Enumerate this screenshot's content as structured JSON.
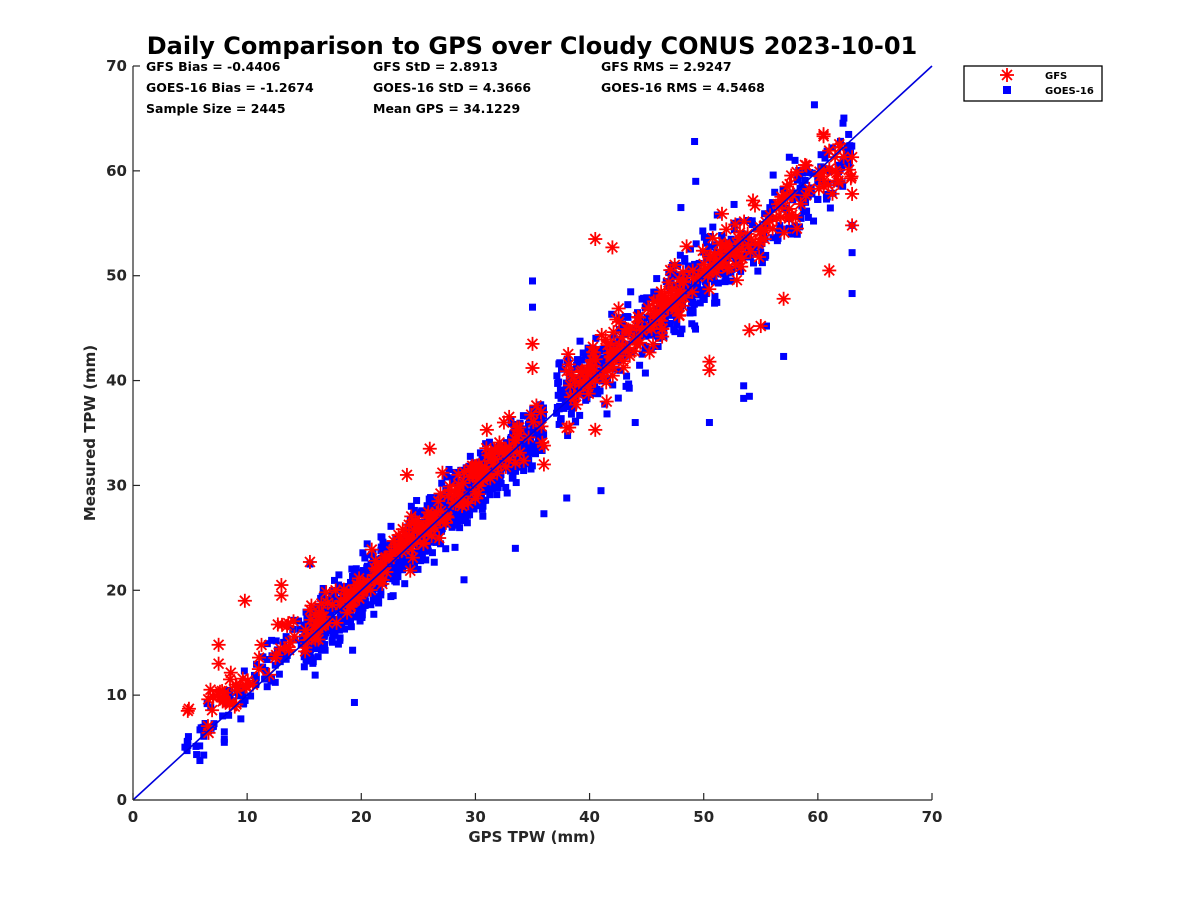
{
  "chart_data": {
    "type": "scatter",
    "title": "Daily Comparison to GPS over Cloudy CONUS 2023-10-01",
    "xlabel": "GPS TPW (mm)",
    "ylabel": "Measured TPW (mm)",
    "xlim": [
      0,
      70
    ],
    "ylim": [
      0,
      70
    ],
    "xticks": [
      "0",
      "10",
      "20",
      "30",
      "40",
      "50",
      "60",
      "70"
    ],
    "yticks": [
      "0",
      "10",
      "20",
      "30",
      "40",
      "50",
      "60",
      "70"
    ],
    "reference_line": {
      "from": [
        0,
        0
      ],
      "to": [
        70,
        70
      ],
      "color": "#0000dd"
    },
    "stats": [
      [
        "GFS Bias = -0.4406",
        "GFS StD = 2.8913",
        "GFS RMS = 2.9247"
      ],
      [
        "GOES-16 Bias = -1.2674",
        "GOES-16 StD = 4.3666",
        "GOES-16 RMS = 4.5468"
      ],
      [
        "Sample Size = 2445",
        "Mean GPS = 34.1229",
        ""
      ]
    ],
    "legend": {
      "position": "outside-top-right",
      "entries": [
        {
          "label": "GFS",
          "marker": "asterisk",
          "color": "#ff0000"
        },
        {
          "label": "GOES-16",
          "marker": "square",
          "color": "#0000ff"
        }
      ]
    },
    "sample_size": 2445,
    "series": [
      {
        "name": "GOES-16",
        "marker": "square",
        "color": "#0000ff",
        "clusters": [
          {
            "x_range": [
              4.5,
              16
            ],
            "slope": 1.0,
            "offset": 0.5,
            "spread": 2.6,
            "count": 90
          },
          {
            "x_range": [
              15,
              36
            ],
            "slope": 1.0,
            "offset": 0.0,
            "spread": 2.8,
            "count": 1100
          },
          {
            "x_range": [
              37,
              52
            ],
            "slope": 0.95,
            "offset": 2.5,
            "spread": 3.6,
            "count": 420
          },
          {
            "x_range": [
              52,
              63
            ],
            "slope": 0.9,
            "offset": 5.0,
            "spread": 3.2,
            "count": 160
          }
        ],
        "points": [
          [
            4.8,
            5.2
          ],
          [
            4.8,
            5.6
          ],
          [
            7,
            7
          ],
          [
            8,
            5.5
          ],
          [
            8,
            6.5
          ],
          [
            8,
            5.8
          ],
          [
            19.4,
            9.3
          ],
          [
            15.5,
            22.5
          ],
          [
            29,
            21
          ],
          [
            33.5,
            24
          ],
          [
            35,
            47
          ],
          [
            35,
            49.5
          ],
          [
            41,
            29.5
          ],
          [
            44,
            36
          ],
          [
            50.5,
            36
          ],
          [
            53.5,
            38.3
          ],
          [
            54,
            38.5
          ],
          [
            53.5,
            39.5
          ],
          [
            57,
            42.3
          ],
          [
            55.5,
            45.2
          ],
          [
            59.7,
            66.3
          ],
          [
            49.2,
            62.8
          ],
          [
            49.3,
            59
          ],
          [
            63,
            48.3
          ],
          [
            63,
            52.2
          ],
          [
            63,
            54.8
          ],
          [
            57.5,
            61.3
          ],
          [
            58,
            61
          ],
          [
            48,
            56.5
          ],
          [
            38,
            28.8
          ],
          [
            36,
            27.3
          ]
        ]
      },
      {
        "name": "GFS",
        "marker": "asterisk",
        "color": "#ff0000",
        "clusters": [
          {
            "x_range": [
              6.5,
              16
            ],
            "slope": 1.0,
            "offset": 2.0,
            "spread": 2.2,
            "count": 40
          },
          {
            "x_range": [
              15,
              36
            ],
            "slope": 1.0,
            "offset": 0.5,
            "spread": 2.2,
            "count": 220
          },
          {
            "x_range": [
              38,
              52
            ],
            "slope": 1.0,
            "offset": 0.8,
            "spread": 3.0,
            "count": 150
          },
          {
            "x_range": [
              52,
              63
            ],
            "slope": 0.92,
            "offset": 4.0,
            "spread": 2.8,
            "count": 80
          }
        ],
        "points": [
          [
            4.8,
            8.5
          ],
          [
            4.9,
            8.7
          ],
          [
            7,
            9.8
          ],
          [
            7.5,
            10
          ],
          [
            8,
            9.5
          ],
          [
            8.5,
            11.5
          ],
          [
            9,
            11
          ],
          [
            7.5,
            13
          ],
          [
            7.5,
            14.8
          ],
          [
            9.8,
            19
          ],
          [
            10.5,
            11
          ],
          [
            13,
            19.5
          ],
          [
            13,
            20.5
          ],
          [
            15.5,
            22.7
          ],
          [
            35,
            43.5
          ],
          [
            35,
            41.2
          ],
          [
            38,
            35.5
          ],
          [
            40.5,
            35.3
          ],
          [
            40.5,
            53.5
          ],
          [
            41.5,
            38
          ],
          [
            42,
            52.7
          ],
          [
            60.5,
            63.5
          ],
          [
            60.5,
            63.3
          ],
          [
            63,
            61.3
          ],
          [
            63,
            57.8
          ],
          [
            63,
            54.8
          ],
          [
            61,
            50.5
          ],
          [
            59,
            60.5
          ],
          [
            57,
            47.8
          ],
          [
            55,
            45.2
          ],
          [
            54,
            44.8
          ],
          [
            50.5,
            41
          ],
          [
            50.5,
            41.8
          ],
          [
            48.5,
            52.8
          ],
          [
            24,
            31
          ],
          [
            26,
            33.5
          ],
          [
            31,
            35.3
          ],
          [
            32.5,
            36
          ],
          [
            36,
            33.8
          ],
          [
            36,
            32
          ]
        ]
      }
    ]
  }
}
